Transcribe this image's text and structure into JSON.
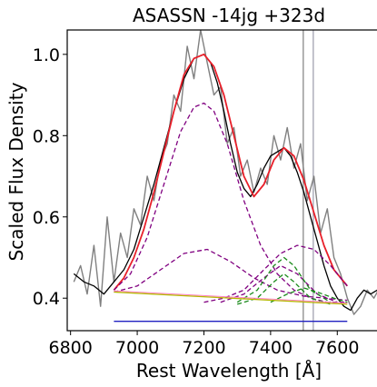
{
  "chart_data": {
    "type": "line",
    "title": "ASASSN -14jg  +323d",
    "xlabel": "Rest Wavelength [Å]",
    "ylabel": "Scaled Flux Density",
    "xlim": [
      6790,
      7760
    ],
    "ylim": [
      0.32,
      1.06
    ],
    "xticks": [
      6800,
      7000,
      7200,
      7400,
      7600
    ],
    "yticks": [
      0.4,
      0.6,
      0.8,
      1.0
    ],
    "grid": false,
    "legend": "none",
    "vlines": [
      {
        "x": 7498,
        "color": "#808080"
      },
      {
        "x": 7528,
        "color": "#9a9aaa"
      }
    ],
    "series": [
      {
        "style": "raw-data",
        "color": "#808080",
        "x": [
          6810,
          6830,
          6850,
          6870,
          6890,
          6910,
          6930,
          6950,
          6970,
          6990,
          7010,
          7030,
          7050,
          7070,
          7090,
          7110,
          7130,
          7150,
          7170,
          7190,
          7210,
          7230,
          7250,
          7270,
          7290,
          7310,
          7330,
          7350,
          7370,
          7390,
          7410,
          7430,
          7450,
          7470,
          7490,
          7510,
          7530,
          7550,
          7570,
          7590,
          7610,
          7630,
          7650,
          7670,
          7690,
          7710,
          7730
        ],
        "y": [
          0.44,
          0.48,
          0.41,
          0.53,
          0.38,
          0.6,
          0.44,
          0.56,
          0.5,
          0.62,
          0.58,
          0.7,
          0.64,
          0.74,
          0.78,
          0.9,
          0.86,
          1.02,
          0.94,
          1.06,
          0.98,
          0.9,
          0.92,
          0.78,
          0.82,
          0.7,
          0.74,
          0.66,
          0.72,
          0.68,
          0.8,
          0.74,
          0.82,
          0.72,
          0.78,
          0.64,
          0.7,
          0.56,
          0.62,
          0.5,
          0.46,
          0.4,
          0.36,
          0.38,
          0.42,
          0.4,
          0.43
        ]
      },
      {
        "style": "smoothed",
        "color": "#000000",
        "x": [
          6810,
          6840,
          6870,
          6900,
          6930,
          6960,
          6990,
          7020,
          7050,
          7080,
          7110,
          7140,
          7170,
          7200,
          7220,
          7240,
          7260,
          7280,
          7300,
          7320,
          7340,
          7360,
          7380,
          7400,
          7420,
          7440,
          7460,
          7480,
          7500,
          7520,
          7540,
          7560,
          7580,
          7600,
          7620,
          7640,
          7660,
          7680,
          7700,
          7720,
          7735
        ],
        "y": [
          0.46,
          0.44,
          0.43,
          0.41,
          0.44,
          0.47,
          0.52,
          0.6,
          0.68,
          0.77,
          0.86,
          0.94,
          0.99,
          1.0,
          0.98,
          0.93,
          0.86,
          0.78,
          0.71,
          0.67,
          0.65,
          0.68,
          0.72,
          0.75,
          0.76,
          0.77,
          0.75,
          0.71,
          0.66,
          0.6,
          0.54,
          0.48,
          0.43,
          0.4,
          0.38,
          0.37,
          0.4,
          0.42,
          0.41,
          0.42,
          0.42
        ]
      },
      {
        "style": "fit-total",
        "color": "#e8202a",
        "x": [
          6930,
          6960,
          6990,
          7020,
          7050,
          7080,
          7110,
          7140,
          7170,
          7200,
          7230,
          7260,
          7290,
          7320,
          7350,
          7380,
          7410,
          7440,
          7470,
          7500,
          7530,
          7560,
          7590,
          7630
        ],
        "y": [
          0.42,
          0.45,
          0.5,
          0.57,
          0.66,
          0.76,
          0.86,
          0.95,
          0.99,
          1.0,
          0.97,
          0.9,
          0.8,
          0.7,
          0.65,
          0.68,
          0.74,
          0.77,
          0.75,
          0.69,
          0.61,
          0.53,
          0.47,
          0.43
        ]
      },
      {
        "style": "component-broad",
        "color": "#800080",
        "x": [
          6930,
          6980,
          7030,
          7080,
          7130,
          7170,
          7200,
          7230,
          7270,
          7320,
          7370,
          7420,
          7470,
          7520,
          7570,
          7630
        ],
        "y": [
          0.42,
          0.46,
          0.55,
          0.68,
          0.81,
          0.87,
          0.88,
          0.86,
          0.78,
          0.64,
          0.53,
          0.46,
          0.42,
          0.4,
          0.39,
          0.39
        ]
      },
      {
        "style": "component-narrow",
        "color": "#800080",
        "x": [
          6930,
          7000,
          7070,
          7140,
          7210,
          7280,
          7350,
          7420,
          7500,
          7630
        ],
        "y": [
          0.415,
          0.43,
          0.47,
          0.51,
          0.52,
          0.49,
          0.45,
          0.42,
          0.405,
          0.395
        ]
      },
      {
        "style": "component-broad-2",
        "color": "#800080",
        "x": [
          7200,
          7260,
          7320,
          7380,
          7430,
          7480,
          7530,
          7580,
          7630
        ],
        "y": [
          0.39,
          0.4,
          0.42,
          0.47,
          0.51,
          0.53,
          0.52,
          0.48,
          0.43
        ]
      },
      {
        "style": "component-narrow-2",
        "color": "#800080",
        "x": [
          7250,
          7320,
          7380,
          7430,
          7480,
          7540,
          7600
        ],
        "y": [
          0.39,
          0.41,
          0.45,
          0.48,
          0.46,
          0.41,
          0.39
        ]
      },
      {
        "style": "component-green-1",
        "color": "#1a8a1a",
        "x": [
          7300,
          7360,
          7410,
          7440,
          7470,
          7520,
          7580
        ],
        "y": [
          0.39,
          0.42,
          0.48,
          0.5,
          0.48,
          0.42,
          0.39
        ]
      },
      {
        "style": "component-green-2",
        "color": "#1a8a1a",
        "x": [
          7300,
          7360,
          7410,
          7440,
          7470,
          7520,
          7580
        ],
        "y": [
          0.385,
          0.4,
          0.44,
          0.46,
          0.44,
          0.4,
          0.385
        ]
      },
      {
        "style": "component-green-3",
        "color": "#1a8a1a",
        "x": [
          7400,
          7450,
          7500,
          7540,
          7590,
          7630
        ],
        "y": [
          0.39,
          0.41,
          0.425,
          0.415,
          0.4,
          0.39
        ]
      },
      {
        "style": "continuum",
        "color": "#b5b800",
        "x": [
          6930,
          7630
        ],
        "y": [
          0.415,
          0.385
        ]
      },
      {
        "style": "continuum-pink",
        "color": "#ff80c0",
        "x": [
          6930,
          7630
        ],
        "y": [
          0.418,
          0.388
        ]
      },
      {
        "style": "fit-region",
        "color": "#2020c0",
        "x": [
          6930,
          7630
        ],
        "y": [
          0.343,
          0.343
        ]
      }
    ]
  }
}
